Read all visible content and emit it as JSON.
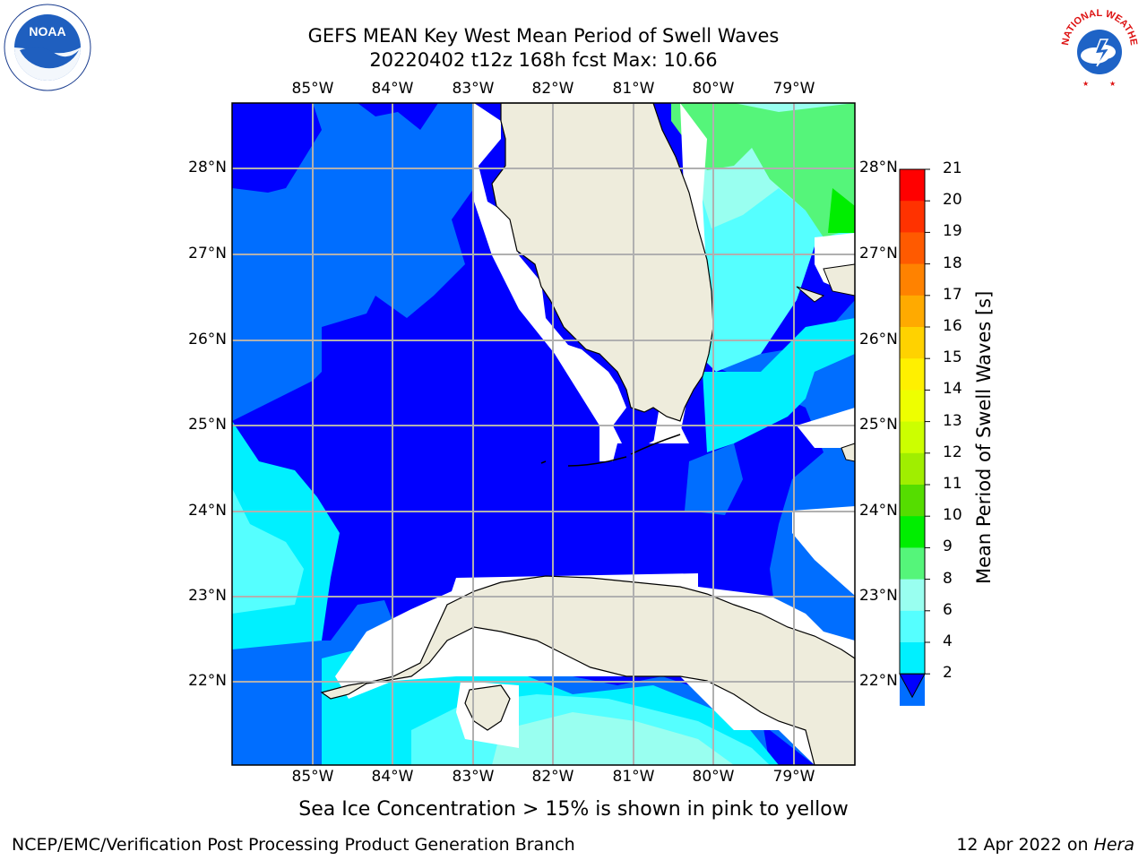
{
  "header": {
    "title_line1": "GEFS MEAN Key West Mean Period of Swell Waves",
    "title_line2": "20220402 t12z 168h fcst   Max: 10.66"
  },
  "map": {
    "lon_ticks_top": [
      "85°W",
      "84°W",
      "83°W",
      "82°W",
      "81°W",
      "80°W",
      "79°W"
    ],
    "lon_ticks_bottom": [
      "85°W",
      "84°W",
      "83°W",
      "82°W",
      "81°W",
      "80°W",
      "79°W"
    ],
    "lat_ticks_left": [
      "28°N",
      "27°N",
      "26°N",
      "25°N",
      "24°N",
      "23°N",
      "22°N"
    ],
    "lat_ticks_right": [
      "28°N",
      "27°N",
      "26°N",
      "25°N",
      "24°N",
      "23°N",
      "22°N"
    ],
    "land_color": "#eeecdc",
    "grid_color": "#b0b0b0",
    "coast_color": "#000000"
  },
  "colorbar": {
    "label": "Mean Period of Swell Waves [s]",
    "levels": [
      "21",
      "20",
      "19",
      "18",
      "17",
      "16",
      "15",
      "14",
      "13",
      "12",
      "11",
      "10",
      "9",
      "8",
      "6",
      "4",
      "2"
    ],
    "colors_top_to_bottom": [
      "#ff0000",
      "#ff3200",
      "#ff5a00",
      "#ff8200",
      "#ffaa00",
      "#ffd200",
      "#fff000",
      "#eeff00",
      "#ccff00",
      "#a0ee00",
      "#55dd00",
      "#00ee00",
      "#55f57a",
      "#99fff0",
      "#55ffff",
      "#00f0ff",
      "#006eff"
    ],
    "underflow_color": "#0000ff"
  },
  "caption": "Sea Ice Concentration > 15% is shown in pink to yellow",
  "footer": {
    "left": "NCEP/EMC/Verification Post Processing Product Generation Branch",
    "right_date": "12 Apr 2022 on ",
    "right_host": "Hera"
  },
  "logos": {
    "noaa_text": "NOAA",
    "nws_text": "NATIONAL WEATHER SERVICE"
  }
}
